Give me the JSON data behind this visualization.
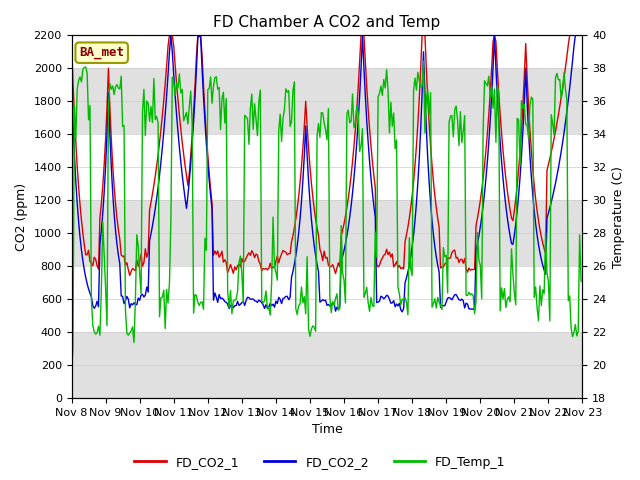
{
  "title": "FD Chamber A CO2 and Temp",
  "xlabel": "Time",
  "ylabel_left": "CO2 (ppm)",
  "ylabel_right": "Temperature (C)",
  "ylim_left": [
    0,
    2200
  ],
  "ylim_right": [
    18,
    40
  ],
  "xlim": [
    0,
    360
  ],
  "x_tick_labels": [
    "Nov 8",
    "Nov 9",
    "Nov 10",
    "Nov 11",
    "Nov 12",
    "Nov 13",
    "Nov 14",
    "Nov 15",
    "Nov 16",
    "Nov 17",
    "Nov 18",
    "Nov 19",
    "Nov 20",
    "Nov 21",
    "Nov 22",
    "Nov 23"
  ],
  "x_tick_positions": [
    0,
    24,
    48,
    72,
    96,
    120,
    144,
    168,
    192,
    216,
    240,
    264,
    288,
    312,
    336,
    360
  ],
  "ba_met_label": "BA_met",
  "co2_1_color": "#dd0000",
  "co2_2_color": "#0000dd",
  "temp_color": "#00bb00",
  "line_labels": [
    "FD_CO2_1",
    "FD_CO2_2",
    "FD_Temp_1"
  ],
  "band_color": "#e0e0e0",
  "background_color": "#ffffff",
  "title_fontsize": 11,
  "axis_label_fontsize": 9,
  "tick_fontsize": 8,
  "legend_fontsize": 9,
  "yticks_left": [
    0,
    200,
    400,
    600,
    800,
    1000,
    1200,
    1400,
    1600,
    1800,
    2000,
    2200
  ],
  "yticks_right": [
    18,
    20,
    22,
    24,
    26,
    28,
    30,
    32,
    34,
    36,
    38,
    40
  ],
  "band_ranges": [
    [
      0,
      400
    ],
    [
      800,
      1200
    ],
    [
      1600,
      2000
    ]
  ],
  "grid_color": "#cccccc",
  "linewidth": 1.0
}
